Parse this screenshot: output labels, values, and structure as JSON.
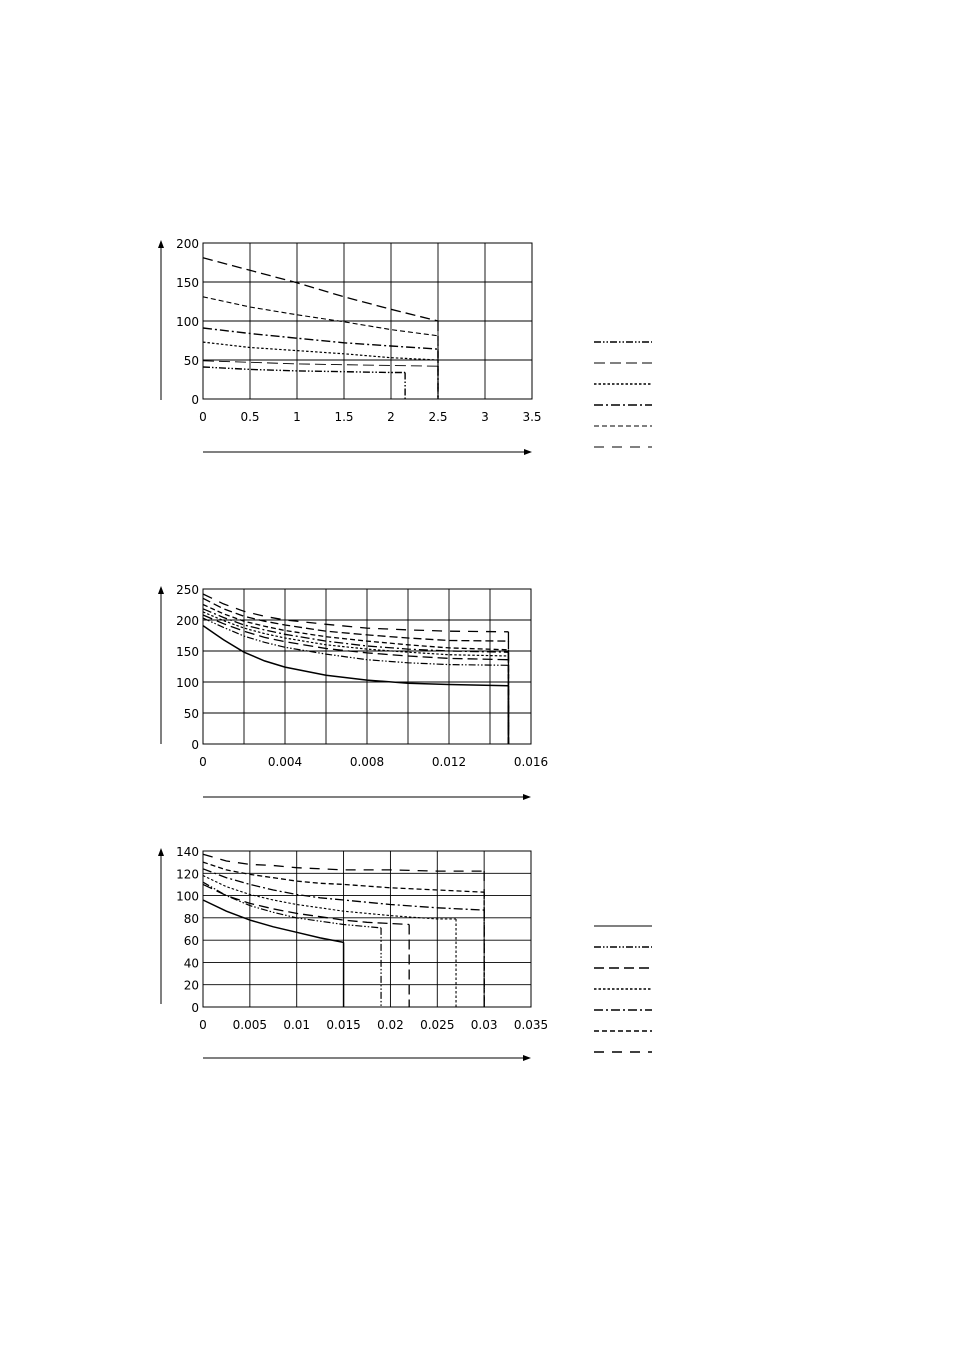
{
  "page": {
    "background": "#ffffff",
    "ink": "#000000"
  },
  "chart_data": [
    {
      "type": "line",
      "title": "",
      "xlabel": "",
      "ylabel": "",
      "xlim": [
        0,
        3.5
      ],
      "ylim": [
        0,
        200
      ],
      "grid": true,
      "legend": "right",
      "x_ticks": [
        0,
        0.5,
        1,
        1.5,
        2,
        2.5,
        3,
        3.5
      ],
      "x_tick_labels": [
        "0",
        "0.5",
        "1",
        "1.5",
        "2",
        "2.5",
        "3",
        "3.5"
      ],
      "y_ticks": [
        0,
        50,
        100,
        150,
        200
      ],
      "y_tick_labels": [
        "0",
        "50",
        "100",
        "150",
        "200"
      ],
      "series": [
        {
          "style": "dash-dot-dot",
          "width": 1.4,
          "end_x": 2.15,
          "points": [
            [
              0,
              41
            ],
            [
              0.5,
              38
            ],
            [
              1,
              36
            ],
            [
              1.5,
              35
            ],
            [
              2,
              34
            ],
            [
              2.15,
              34
            ]
          ]
        },
        {
          "style": "long-dash-thin",
          "width": 0.9,
          "end_x": 2.5,
          "points": [
            [
              0,
              49
            ],
            [
              0.5,
              47
            ],
            [
              1,
              45
            ],
            [
              1.5,
              44
            ],
            [
              2,
              43
            ],
            [
              2.5,
              42
            ]
          ]
        },
        {
          "style": "dotted",
          "width": 1.2,
          "end_x": 2.5,
          "points": [
            [
              0,
              73
            ],
            [
              0.5,
              66
            ],
            [
              1,
              62
            ],
            [
              1.5,
              58
            ],
            [
              2,
              53
            ],
            [
              2.5,
              50
            ]
          ]
        },
        {
          "style": "dash-dot",
          "width": 1.4,
          "end_x": 2.5,
          "points": [
            [
              0,
              91
            ],
            [
              0.5,
              84
            ],
            [
              1,
              78
            ],
            [
              1.5,
              72
            ],
            [
              2,
              68
            ],
            [
              2.5,
              64
            ]
          ]
        },
        {
          "style": "short-dash-thin",
          "width": 1.1,
          "end_x": 2.5,
          "points": [
            [
              0,
              131
            ],
            [
              0.5,
              118
            ],
            [
              1,
              108
            ],
            [
              1.5,
              99
            ],
            [
              2,
              89
            ],
            [
              2.5,
              81
            ]
          ]
        },
        {
          "style": "long-dash",
          "width": 1.3,
          "end_x": 2.5,
          "points": [
            [
              0,
              181
            ],
            [
              0.5,
              165
            ],
            [
              1,
              149
            ],
            [
              1.5,
              131
            ],
            [
              2,
              115
            ],
            [
              2.5,
              100
            ]
          ]
        }
      ]
    },
    {
      "type": "line",
      "title": "",
      "xlabel": "",
      "ylabel": "",
      "xlim": [
        0,
        0.016
      ],
      "ylim": [
        0,
        250
      ],
      "grid": true,
      "legend": "none",
      "x_ticks": [
        0,
        0.002,
        0.004,
        0.006,
        0.008,
        0.01,
        0.012,
        0.014,
        0.016
      ],
      "x_tick_labels": [
        "0",
        "",
        "0.004",
        "",
        "0.008",
        "",
        "0.012",
        "",
        "0.016"
      ],
      "y_ticks": [
        0,
        50,
        100,
        150,
        200,
        250
      ],
      "y_tick_labels": [
        "0",
        "50",
        "100",
        "150",
        "200",
        "250"
      ],
      "series": [
        {
          "style": "solid",
          "width": 1.5,
          "end_x": 0.0149,
          "points": [
            [
              0,
              191
            ],
            [
              0.001,
              168
            ],
            [
              0.002,
              148
            ],
            [
              0.003,
              134
            ],
            [
              0.004,
              124
            ],
            [
              0.006,
              111
            ],
            [
              0.008,
              103
            ],
            [
              0.01,
              98
            ],
            [
              0.012,
              96
            ],
            [
              0.0149,
              94
            ]
          ]
        },
        {
          "style": "dash-dot-dot",
          "width": 1.2,
          "end_x": 0.0149,
          "points": [
            [
              0,
              203
            ],
            [
              0.001,
              188
            ],
            [
              0.002,
              174
            ],
            [
              0.003,
              164
            ],
            [
              0.004,
              156
            ],
            [
              0.006,
              145
            ],
            [
              0.008,
              136
            ],
            [
              0.01,
              131
            ],
            [
              0.012,
              128
            ],
            [
              0.0149,
              127
            ]
          ]
        },
        {
          "style": "long-dash",
          "width": 1.3,
          "end_x": 0.0149,
          "points": [
            [
              0,
              208
            ],
            [
              0.001,
              194
            ],
            [
              0.002,
              182
            ],
            [
              0.003,
              172
            ],
            [
              0.004,
              165
            ],
            [
              0.006,
              154
            ],
            [
              0.008,
              147
            ],
            [
              0.01,
              142
            ],
            [
              0.012,
              138
            ],
            [
              0.0149,
              136
            ]
          ]
        },
        {
          "style": "dotted",
          "width": 1.2,
          "end_x": 0.0149,
          "points": [
            [
              0,
              213
            ],
            [
              0.001,
              199
            ],
            [
              0.002,
              187
            ],
            [
              0.003,
              178
            ],
            [
              0.004,
              171
            ],
            [
              0.006,
              160
            ],
            [
              0.008,
              153
            ],
            [
              0.01,
              148
            ],
            [
              0.012,
              144
            ],
            [
              0.0149,
              142
            ]
          ]
        },
        {
          "style": "dash-dot",
          "width": 1.3,
          "end_x": 0.0149,
          "points": [
            [
              0,
              218
            ],
            [
              0.001,
              204
            ],
            [
              0.002,
              192
            ],
            [
              0.003,
              184
            ],
            [
              0.004,
              177
            ],
            [
              0.006,
              166
            ],
            [
              0.008,
              158
            ],
            [
              0.01,
              153
            ],
            [
              0.012,
              150
            ],
            [
              0.0149,
              148
            ]
          ]
        },
        {
          "style": "short-dash",
          "width": 1.3,
          "end_x": 0.0149,
          "points": [
            [
              0,
              225
            ],
            [
              0.001,
              210
            ],
            [
              0.002,
              198
            ],
            [
              0.003,
              190
            ],
            [
              0.004,
              183
            ],
            [
              0.006,
              173
            ],
            [
              0.008,
              166
            ],
            [
              0.01,
              160
            ],
            [
              0.012,
              155
            ],
            [
              0.0149,
              152
            ]
          ]
        },
        {
          "style": "medium-dash",
          "width": 1.3,
          "end_x": 0.0149,
          "points": [
            [
              0,
              235
            ],
            [
              0.001,
              218
            ],
            [
              0.002,
              206
            ],
            [
              0.003,
              198
            ],
            [
              0.004,
              192
            ],
            [
              0.006,
              182
            ],
            [
              0.008,
              176
            ],
            [
              0.01,
              171
            ],
            [
              0.012,
              167
            ],
            [
              0.0149,
              166
            ]
          ]
        },
        {
          "style": "long-dash-sparse",
          "width": 1.3,
          "end_x": 0.0149,
          "points": [
            [
              0,
              242
            ],
            [
              0.001,
              226
            ],
            [
              0.002,
              214
            ],
            [
              0.003,
              206
            ],
            [
              0.004,
              200
            ],
            [
              0.006,
              193
            ],
            [
              0.008,
              187
            ],
            [
              0.01,
              184
            ],
            [
              0.012,
              182
            ],
            [
              0.0149,
              181
            ]
          ]
        }
      ]
    },
    {
      "type": "line",
      "title": "",
      "xlabel": "",
      "ylabel": "",
      "xlim": [
        0,
        0.035
      ],
      "ylim": [
        0,
        140
      ],
      "grid": true,
      "legend": "right",
      "x_ticks": [
        0,
        0.005,
        0.01,
        0.015,
        0.02,
        0.025,
        0.03,
        0.035
      ],
      "x_tick_labels": [
        "0",
        "0.005",
        "0.01",
        "0.015",
        "0.02",
        "0.025",
        "0.03",
        "0.035"
      ],
      "y_ticks": [
        0,
        20,
        40,
        60,
        80,
        100,
        120,
        140
      ],
      "y_tick_labels": [
        "0",
        "20",
        "40",
        "60",
        "80",
        "100",
        "120",
        "140"
      ],
      "series": [
        {
          "style": "solid",
          "width": 1.5,
          "end_x": 0.015,
          "points": [
            [
              0,
              96
            ],
            [
              0.0025,
              86
            ],
            [
              0.005,
              78
            ],
            [
              0.0075,
              72
            ],
            [
              0.01,
              67
            ],
            [
              0.0125,
              62
            ],
            [
              0.015,
              58
            ]
          ]
        },
        {
          "style": "dash-dot-dot",
          "width": 1.2,
          "end_x": 0.019,
          "points": [
            [
              0,
              112
            ],
            [
              0.0025,
              100
            ],
            [
              0.005,
              91
            ],
            [
              0.0075,
              85
            ],
            [
              0.01,
              80
            ],
            [
              0.0125,
              77
            ],
            [
              0.015,
              74
            ],
            [
              0.019,
              71
            ]
          ]
        },
        {
          "style": "long-dash",
          "width": 1.3,
          "end_x": 0.022,
          "points": [
            [
              0,
              110
            ],
            [
              0.0025,
              100
            ],
            [
              0.005,
              93
            ],
            [
              0.0075,
              88
            ],
            [
              0.01,
              84
            ],
            [
              0.0125,
              81
            ],
            [
              0.015,
              78
            ],
            [
              0.0175,
              76
            ],
            [
              0.022,
              74
            ]
          ]
        },
        {
          "style": "dotted",
          "width": 1.1,
          "end_x": 0.027,
          "points": [
            [
              0,
              118
            ],
            [
              0.0025,
              108
            ],
            [
              0.005,
              101
            ],
            [
              0.0075,
              96
            ],
            [
              0.01,
              92
            ],
            [
              0.0125,
              89
            ],
            [
              0.015,
              86
            ],
            [
              0.02,
              82
            ],
            [
              0.025,
              79
            ],
            [
              0.027,
              79
            ]
          ]
        },
        {
          "style": "dash-dot",
          "width": 1.3,
          "end_x": 0.03,
          "points": [
            [
              0,
              124
            ],
            [
              0.0025,
              116
            ],
            [
              0.005,
              110
            ],
            [
              0.0075,
              105
            ],
            [
              0.01,
              101
            ],
            [
              0.0125,
              98
            ],
            [
              0.015,
              96
            ],
            [
              0.02,
              92
            ],
            [
              0.025,
              89
            ],
            [
              0.03,
              87
            ]
          ]
        },
        {
          "style": "short-dash",
          "width": 1.3,
          "end_x": 0.03,
          "points": [
            [
              0,
              130
            ],
            [
              0.0025,
              123
            ],
            [
              0.005,
              119
            ],
            [
              0.0075,
              116
            ],
            [
              0.01,
              113
            ],
            [
              0.0125,
              111
            ],
            [
              0.015,
              110
            ],
            [
              0.02,
              107
            ],
            [
              0.025,
              105
            ],
            [
              0.03,
              103
            ]
          ]
        },
        {
          "style": "long-dash-sparse",
          "width": 1.3,
          "end_x": 0.03,
          "points": [
            [
              0,
              137
            ],
            [
              0.0025,
              131
            ],
            [
              0.005,
              128
            ],
            [
              0.0075,
              127
            ],
            [
              0.01,
              125
            ],
            [
              0.0125,
              124
            ],
            [
              0.015,
              123
            ],
            [
              0.02,
              123
            ],
            [
              0.025,
              122
            ],
            [
              0.03,
              122
            ]
          ]
        }
      ]
    }
  ],
  "legends": [
    {
      "entries": [
        {
          "style": "dash-dot-dot",
          "width": 1.5
        },
        {
          "style": "long-dash-thin",
          "width": 0.9
        },
        {
          "style": "dotted",
          "width": 1.4
        },
        {
          "style": "dash-dot",
          "width": 1.5
        },
        {
          "style": "short-dash-thin",
          "width": 0.9
        },
        {
          "style": "long-dash-sparse",
          "width": 1.1
        }
      ]
    },
    {
      "entries": [
        {
          "style": "solid",
          "width": 0.9
        },
        {
          "style": "dash-dot-dot",
          "width": 1.5
        },
        {
          "style": "long-dash",
          "width": 1.5
        },
        {
          "style": "dotted",
          "width": 1.4
        },
        {
          "style": "dash-dot",
          "width": 1.5
        },
        {
          "style": "short-dash",
          "width": 1.5
        },
        {
          "style": "long-dash-sparse",
          "width": 1.5
        }
      ]
    }
  ]
}
